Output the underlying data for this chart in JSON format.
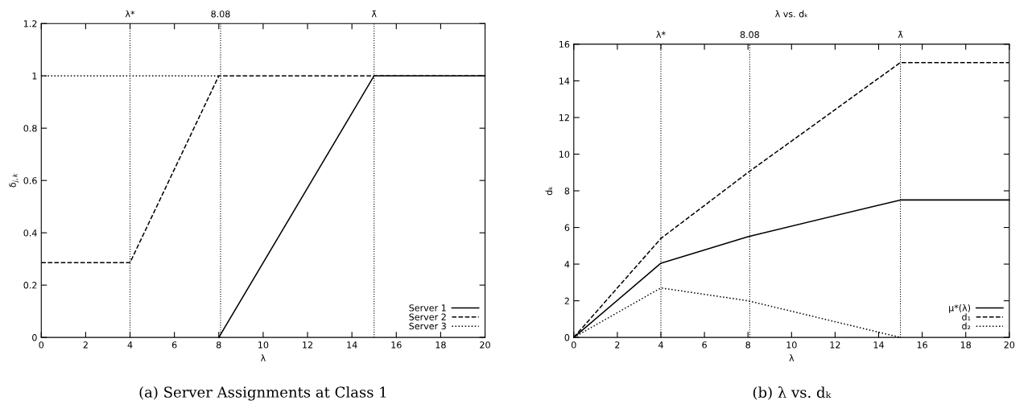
{
  "chart_data": [
    {
      "type": "line",
      "xlabel": "λ",
      "ylabel": "δ$_{j,k}$",
      "xlim": [
        0,
        20
      ],
      "xticks": [
        0,
        2,
        4,
        6,
        8,
        10,
        12,
        14,
        16,
        18,
        20
      ],
      "ylim": [
        0,
        1.2
      ],
      "yticks": [
        0,
        0.2,
        0.4,
        0.6,
        0.8,
        1,
        1.2
      ],
      "ref_lines": [
        {
          "axis": "x",
          "value": 4,
          "label": "λ*",
          "line_style": "dotted",
          "color": "#000000"
        },
        {
          "axis": "x",
          "value": 8.08,
          "label": "8.08",
          "line_style": "dotted",
          "color": "#000000"
        },
        {
          "axis": "x",
          "value": 15,
          "label": "λ̄",
          "line_style": "dotted",
          "color": "#000000"
        }
      ],
      "series": [
        {
          "name": "Server 1",
          "color": "#000000",
          "line_style": "solid",
          "x": [
            8,
            15,
            20
          ],
          "values": [
            0,
            1,
            1
          ]
        },
        {
          "name": "Server 2",
          "color": "#000000",
          "line_style": "dashed",
          "x": [
            0,
            4,
            8,
            15,
            20
          ],
          "values": [
            0.286,
            0.286,
            1,
            1,
            1
          ]
        },
        {
          "name": "Server 3",
          "color": "#000000",
          "line_style": "dotted",
          "x": [
            0,
            8
          ],
          "values": [
            1,
            1
          ]
        }
      ],
      "legend": "bottom right",
      "grid": false,
      "annotations": [
        "(a) Server Assignments at Class 1"
      ]
    },
    {
      "type": "line",
      "title": "λ vs. dₖ",
      "xlabel": "λ",
      "ylabel": "dₖ",
      "xlim": [
        0,
        20
      ],
      "xticks": [
        0,
        2,
        4,
        6,
        8,
        10,
        12,
        14,
        16,
        18,
        20
      ],
      "ylim": [
        0,
        16
      ],
      "yticks": [
        0,
        2,
        4,
        6,
        8,
        10,
        12,
        14,
        16
      ],
      "ref_lines": [
        {
          "axis": "x",
          "value": 4,
          "label": "λ*",
          "line_style": "dotted",
          "color": "#000000"
        },
        {
          "axis": "x",
          "value": 8.08,
          "label": "8.08",
          "line_style": "dotted",
          "color": "#000000"
        },
        {
          "axis": "x",
          "value": 15,
          "label": "λ̄",
          "line_style": "dotted",
          "color": "#000000"
        }
      ],
      "series": [
        {
          "name": "μ*(λ)",
          "color": "#000000",
          "line_style": "solid",
          "x": [
            0,
            4,
            8,
            15,
            20
          ],
          "values": [
            0,
            4.05,
            5.5,
            7.5,
            7.5
          ]
        },
        {
          "name": "d₁",
          "color": "#000000",
          "line_style": "dashed",
          "x": [
            0,
            4,
            8,
            15,
            20
          ],
          "values": [
            0,
            5.4,
            9,
            15,
            15
          ]
        },
        {
          "name": "d₂",
          "color": "#000000",
          "line_style": "dotted",
          "x": [
            0,
            4,
            8,
            15
          ],
          "values": [
            0,
            2.7,
            2,
            0
          ]
        }
      ],
      "legend": "bottom right",
      "grid": false,
      "annotations": [
        "(b) λ vs. dₖ"
      ]
    }
  ]
}
